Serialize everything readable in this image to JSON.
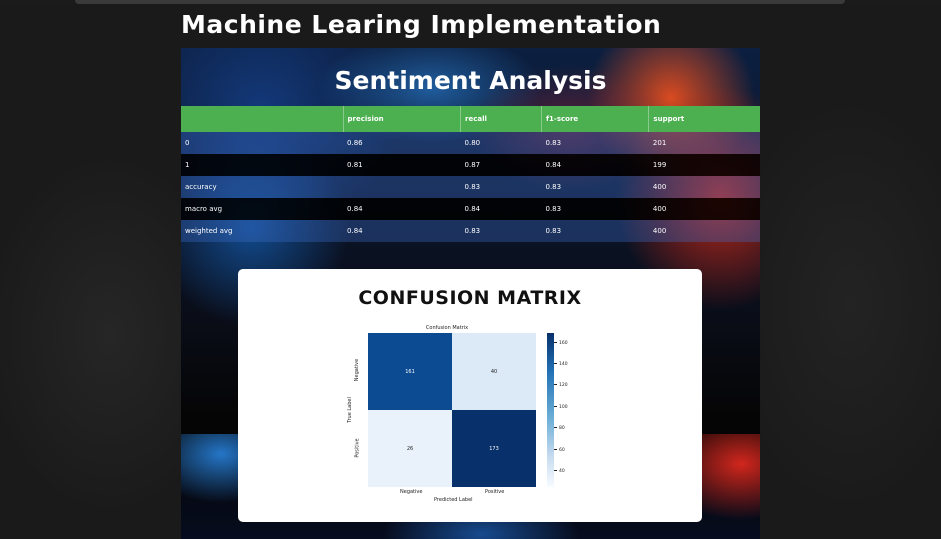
{
  "page": {
    "title": "Machine Learing Implementation"
  },
  "section": {
    "title": "Sentiment Analysis"
  },
  "report_table": {
    "headers": [
      "",
      "precision",
      "recall",
      "f1-score",
      "support"
    ],
    "rows": [
      [
        "0",
        "0.86",
        "0.80",
        "0.83",
        "201"
      ],
      [
        "1",
        "0.81",
        "0.87",
        "0.84",
        "199"
      ],
      [
        "accuracy",
        "",
        "0.83",
        "0.83",
        "400"
      ],
      [
        "macro avg",
        "0.84",
        "0.84",
        "0.83",
        "400"
      ],
      [
        "weighted avg",
        "0.84",
        "0.83",
        "0.83",
        "400"
      ]
    ],
    "header_color": "#4caf50"
  },
  "confusion_card": {
    "heading": "CONFUSION MATRIX",
    "plot_title": "Confusion Matrix",
    "xlabel": "Predicted Label",
    "ylabel": "True Label",
    "x_ticks": [
      "Negative",
      "Positive"
    ],
    "y_ticks": [
      "Negative",
      "Positive"
    ],
    "cells": [
      [
        "161",
        "40"
      ],
      [
        "26",
        "173"
      ]
    ],
    "cell_colors": [
      [
        "#0c4a92",
        "#dce9f6"
      ],
      [
        "#e9f2fb",
        "#08306b"
      ]
    ],
    "cell_text_colors": [
      [
        "#ffffff",
        "#222222"
      ],
      [
        "#222222",
        "#ffffff"
      ]
    ],
    "colorbar_ticks": [
      "160",
      "140",
      "120",
      "100",
      "80",
      "60",
      "40"
    ]
  }
}
